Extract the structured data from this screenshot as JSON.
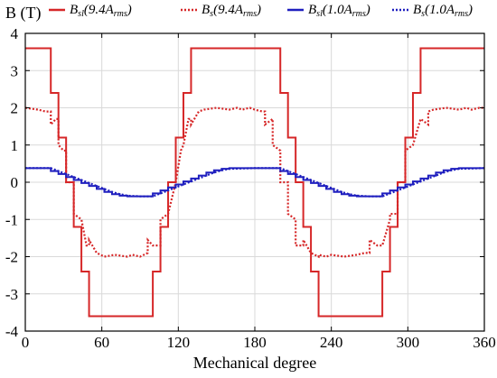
{
  "chart_data": {
    "type": "line",
    "ylabel": "B (T)",
    "xlabel": "Mechanical degree",
    "xlim": [
      0,
      360
    ],
    "ylim": [
      -4,
      4
    ],
    "x_ticks": [
      "0",
      "60",
      "120",
      "180",
      "240",
      "300",
      "360"
    ],
    "y_ticks": [
      "4",
      "3",
      "2",
      "1",
      "0",
      "-1",
      "-2",
      "-3",
      "-4"
    ],
    "grid": true,
    "legend_position": "top",
    "series": [
      {
        "name": "B_sl(9.4A_rms)",
        "legend": {
          "main": "B",
          "sub": "sl",
          "arg": "(9.4",
          "argMain": "A",
          "argSub": "rms",
          "close": ")"
        },
        "color": "#d62728",
        "style": "solid",
        "x": [
          0,
          20,
          20,
          26,
          26,
          32,
          32,
          38,
          38,
          44,
          44,
          50,
          50,
          56,
          56,
          62,
          62,
          68,
          68,
          74,
          74,
          80,
          80,
          90,
          100,
          100,
          106,
          106,
          112,
          112,
          118,
          118,
          124,
          124,
          130,
          130,
          136,
          136,
          142,
          142,
          148,
          148,
          154,
          154,
          160,
          160,
          200,
          200,
          206,
          206,
          212,
          212,
          218,
          218,
          224,
          224,
          230,
          230,
          236,
          236,
          242,
          242,
          248,
          248,
          254,
          254,
          260,
          260,
          270,
          280,
          280,
          286,
          286,
          292,
          292,
          298,
          298,
          304,
          304,
          310,
          310,
          316,
          316,
          322,
          322,
          328,
          328,
          334,
          334,
          340,
          340,
          360
        ],
        "y": [
          3.6,
          3.6,
          2.4,
          2.4,
          1.2,
          1.2,
          0.0,
          0.0,
          -1.2,
          -1.2,
          -2.4,
          -2.4,
          -3.6,
          -3.6,
          -3.6,
          -3.6,
          -3.6,
          -3.6,
          -3.6,
          -3.6,
          -3.6,
          -3.6,
          -3.6,
          -3.6,
          -3.6,
          -2.4,
          -2.4,
          -1.2,
          -1.2,
          0.0,
          0.0,
          1.2,
          1.2,
          2.4,
          2.4,
          3.6,
          3.6,
          3.6,
          3.6,
          3.6,
          3.6,
          3.6,
          3.6,
          3.6,
          3.6,
          3.6,
          3.6,
          2.4,
          2.4,
          1.2,
          1.2,
          0.0,
          0.0,
          -1.2,
          -1.2,
          -2.4,
          -2.4,
          -3.6,
          -3.6,
          -3.6,
          -3.6,
          -3.6,
          -3.6,
          -3.6,
          -3.6,
          -3.6,
          -3.6,
          -3.6,
          -3.6,
          -3.6,
          -2.4,
          -2.4,
          -1.2,
          -1.2,
          0.0,
          0.0,
          1.2,
          1.2,
          2.4,
          2.4,
          3.6,
          3.6,
          3.6,
          3.6,
          3.6,
          3.6,
          3.6,
          3.6,
          3.6,
          3.6,
          3.6,
          3.6
        ]
      },
      {
        "name": "B_s(9.4A_rms)",
        "legend": {
          "main": "B",
          "sub": "s",
          "arg": "(9.4",
          "argMain": "A",
          "argSub": "rms",
          "close": ")"
        },
        "color": "#d62728",
        "style": "dotted",
        "x": [
          0,
          10,
          16,
          20,
          20,
          24,
          26,
          26,
          30,
          32,
          32,
          38,
          38,
          44,
          44,
          48,
          50,
          50,
          56,
          56,
          62,
          70,
          80,
          84,
          90,
          96,
          96,
          100,
          106,
          106,
          112,
          112,
          118,
          118,
          122,
          124,
          124,
          128,
          130,
          130,
          136,
          140,
          150,
          160,
          166,
          170,
          170,
          176,
          180,
          186,
          188,
          188,
          194,
          194,
          200,
          200,
          206,
          206,
          212,
          212,
          218,
          218,
          224,
          224,
          230,
          230,
          236,
          240,
          250,
          260,
          266,
          270,
          270,
          276,
          280,
          286,
          286,
          292,
          292,
          298,
          298,
          304,
          304,
          310,
          310,
          316,
          316,
          320,
          330,
          340,
          346,
          350,
          356,
          360
        ],
        "y": [
          2.0,
          1.95,
          1.9,
          1.9,
          1.55,
          1.7,
          1.7,
          1.0,
          0.85,
          0.85,
          0.0,
          0.0,
          -0.85,
          -1.0,
          -1.0,
          -1.7,
          -1.7,
          -1.55,
          -1.9,
          -1.9,
          -2.0,
          -1.95,
          -2.0,
          -1.95,
          -2.0,
          -1.9,
          -1.55,
          -1.7,
          -1.7,
          -1.0,
          -0.85,
          -0.85,
          0.0,
          0.0,
          0.85,
          1.0,
          1.0,
          1.7,
          1.7,
          1.55,
          1.9,
          1.95,
          2.0,
          1.95,
          2.0,
          1.95,
          1.95,
          2.0,
          1.95,
          1.9,
          1.9,
          1.55,
          1.7,
          1.0,
          0.85,
          0.0,
          0.0,
          -0.85,
          -1.0,
          -1.7,
          -1.7,
          -1.55,
          -1.9,
          -1.9,
          -2.0,
          -1.95,
          -2.0,
          -1.95,
          -2.0,
          -1.95,
          -1.9,
          -1.9,
          -1.55,
          -1.7,
          -1.7,
          -1.0,
          -0.85,
          -0.85,
          0.0,
          0.0,
          0.85,
          1.0,
          1.0,
          1.7,
          1.7,
          1.55,
          1.9,
          1.95,
          2.0,
          1.95,
          2.0,
          1.95,
          2.0,
          2.0
        ]
      },
      {
        "name": "B_sl(1.0A_rms)",
        "legend": {
          "main": "B",
          "sub": "sl",
          "arg": "(1.0",
          "argMain": "A",
          "argSub": "rms",
          "close": ")"
        },
        "color": "#1f1fbf",
        "style": "solid",
        "x": [
          0,
          20,
          20,
          26,
          26,
          32,
          32,
          38,
          38,
          44,
          44,
          50,
          50,
          56,
          56,
          62,
          62,
          68,
          68,
          74,
          74,
          80,
          80,
          90,
          100,
          100,
          106,
          106,
          112,
          112,
          118,
          118,
          124,
          124,
          130,
          130,
          136,
          136,
          142,
          142,
          148,
          148,
          154,
          154,
          160,
          160,
          200,
          200,
          206,
          206,
          212,
          212,
          218,
          218,
          224,
          224,
          230,
          230,
          236,
          236,
          242,
          242,
          248,
          248,
          254,
          254,
          260,
          260,
          270,
          280,
          280,
          286,
          286,
          292,
          292,
          298,
          298,
          304,
          304,
          310,
          310,
          316,
          316,
          322,
          322,
          328,
          328,
          334,
          334,
          340,
          340,
          360
        ],
        "y": [
          0.38,
          0.38,
          0.3,
          0.3,
          0.22,
          0.22,
          0.14,
          0.14,
          0.06,
          0.06,
          -0.02,
          -0.02,
          -0.1,
          -0.1,
          -0.18,
          -0.18,
          -0.26,
          -0.26,
          -0.32,
          -0.32,
          -0.36,
          -0.36,
          -0.38,
          -0.38,
          -0.38,
          -0.3,
          -0.3,
          -0.22,
          -0.22,
          -0.14,
          -0.14,
          -0.06,
          -0.06,
          0.02,
          0.02,
          0.1,
          0.1,
          0.18,
          0.18,
          0.26,
          0.26,
          0.32,
          0.32,
          0.36,
          0.36,
          0.38,
          0.38,
          0.3,
          0.3,
          0.22,
          0.22,
          0.14,
          0.14,
          0.06,
          0.06,
          -0.02,
          -0.02,
          -0.1,
          -0.1,
          -0.18,
          -0.18,
          -0.26,
          -0.26,
          -0.32,
          -0.32,
          -0.36,
          -0.36,
          -0.38,
          -0.38,
          -0.38,
          -0.3,
          -0.3,
          -0.22,
          -0.22,
          -0.14,
          -0.14,
          -0.06,
          -0.06,
          0.02,
          0.02,
          0.1,
          0.1,
          0.18,
          0.18,
          0.26,
          0.26,
          0.32,
          0.32,
          0.36,
          0.36,
          0.38,
          0.38
        ]
      },
      {
        "name": "B_s(1.0A_rms)",
        "legend": {
          "main": "B",
          "sub": "s",
          "arg": "(1.0",
          "argMain": "A",
          "argSub": "rms",
          "close": ")"
        },
        "color": "#1f1fbf",
        "style": "dotted",
        "x": [
          0,
          20,
          26,
          32,
          38,
          44,
          50,
          56,
          62,
          68,
          74,
          80,
          90,
          100,
          106,
          112,
          118,
          124,
          130,
          136,
          142,
          148,
          154,
          160,
          180,
          200,
          206,
          212,
          218,
          224,
          230,
          236,
          242,
          248,
          254,
          260,
          270,
          280,
          286,
          292,
          298,
          304,
          310,
          316,
          322,
          328,
          334,
          340,
          360
        ],
        "y": [
          0.38,
          0.38,
          0.3,
          0.22,
          0.14,
          0.06,
          -0.02,
          -0.1,
          -0.18,
          -0.26,
          -0.32,
          -0.36,
          -0.38,
          -0.38,
          -0.3,
          -0.22,
          -0.14,
          -0.06,
          0.02,
          0.1,
          0.18,
          0.26,
          0.32,
          0.36,
          0.38,
          0.38,
          0.3,
          0.22,
          0.14,
          0.06,
          -0.02,
          -0.1,
          -0.18,
          -0.26,
          -0.32,
          -0.36,
          -0.38,
          -0.38,
          -0.3,
          -0.22,
          -0.14,
          -0.06,
          0.02,
          0.1,
          0.18,
          0.26,
          0.32,
          0.36,
          0.38
        ]
      }
    ]
  }
}
